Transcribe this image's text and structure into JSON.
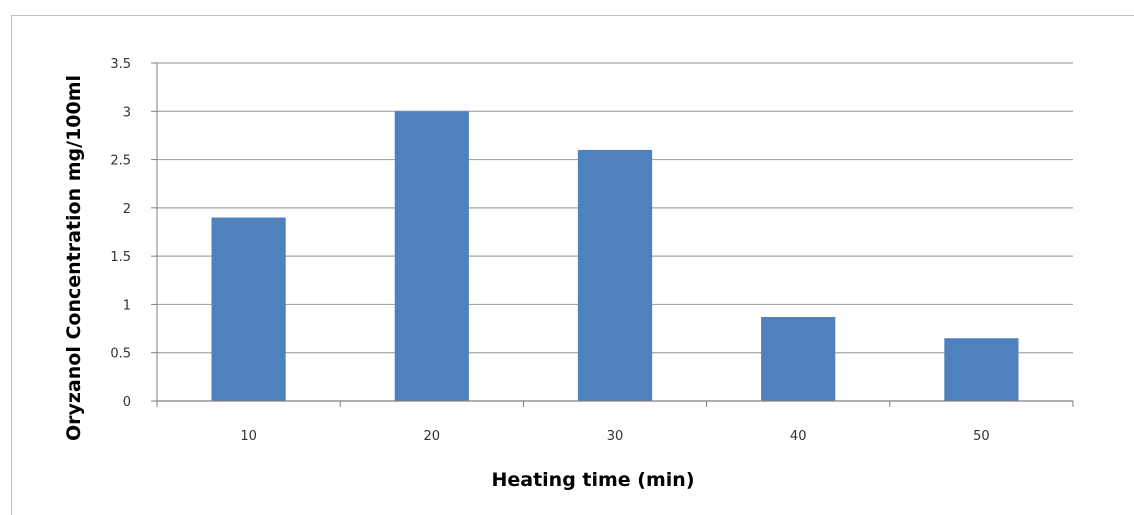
{
  "chart_data": {
    "type": "bar",
    "title": "",
    "categories": [
      "10",
      "20",
      "30",
      "40",
      "50"
    ],
    "values": [
      1.9,
      3.0,
      2.6,
      0.87,
      0.65
    ],
    "xlabel": "Heating time (min)",
    "ylabel": "Oryzanol Concentration mg/100ml",
    "ylim": [
      0,
      3.5
    ],
    "yticks": [
      "0",
      "0.5",
      "1",
      "1.5",
      "2",
      "2.5",
      "3",
      "3.5"
    ],
    "grid": true,
    "legend": "none",
    "bar_color": "#4f81bd",
    "grid_color": "#a6a6a6"
  }
}
